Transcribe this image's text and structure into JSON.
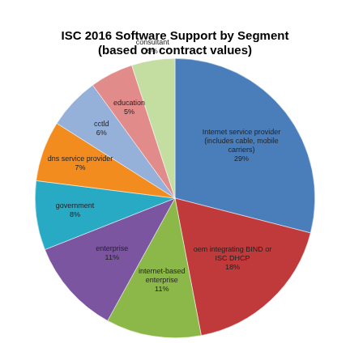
{
  "chart_data": {
    "type": "pie",
    "title": "ISC 2016 Software Support by Segment",
    "subtitle": "(based on contract values)",
    "categories": [
      "Internet service provider (includes cable, mobile carriers)",
      "oem integrating BIND or ISC DHCP",
      "internet-based enterprise",
      "enterprise",
      "government",
      "dns service provider",
      "cctld",
      "education",
      "consultant"
    ],
    "values": [
      29,
      18,
      11,
      11,
      8,
      7,
      6,
      5,
      5
    ],
    "value_labels": [
      "29%",
      "18%",
      "11%",
      "11%",
      "8%",
      "7%",
      "6%",
      "5%",
      "5%"
    ],
    "colors": [
      "#4a7ebb",
      "#c0393b",
      "#8cb749",
      "#7b559f",
      "#28a9c4",
      "#f28c1e",
      "#95b0d9",
      "#e28b8b",
      "#c4dea2"
    ],
    "data_labels": true
  }
}
